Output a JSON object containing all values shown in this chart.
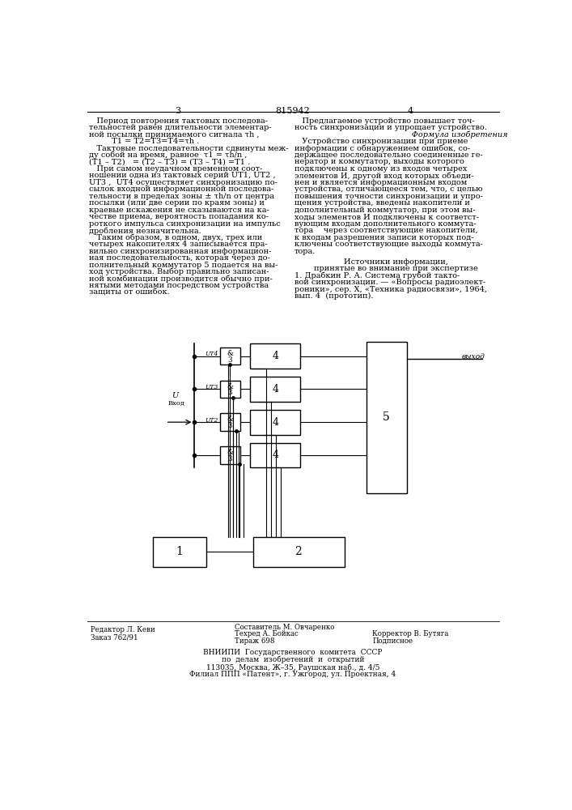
{
  "page_number_left": "3",
  "page_number_center": "815942",
  "page_number_right": "4",
  "left_text_lines": [
    "   Период повторения тактовых последова-",
    "тельностей равен длительности элементар-",
    "ной посылки принимаемого сигнала τh ,",
    "         T1 = T2=T3=T4=τh .",
    "   Тактовые последовательности сдвинуты меж-",
    "ду собой на время, равное  τ1 = τh/n ,",
    "(T1 – T2)   = (T2 – T3) = (T3 – T4) =T1 .",
    "   При самом неудачном временном соот-",
    "ношении одна из тактовых серий UT1, UT2 ,",
    "UT3 ,  UT4 осуществляет синхронизацию по-",
    "сылок входной информационной последова-",
    "тельности в пределах зоны ± τh/n от центра",
    "посылки (или две серии по краям зоны) и",
    "краевые искажения не сказываются на ка-",
    "честве приема, вероятность попадания ко-",
    "роткого импульса синхронизации на импульс",
    "дробления незначительна.",
    "   Таким образом, в одном, двух, трех или",
    "четырех накопителях 4 записывается пра-",
    "вильно синхронизированная информацион-",
    "ная последовательность, которая через до-",
    "полнительный коммутатор 5 подается на вы-",
    "ход устройства. Выбор правильно записан-",
    "ной комбинации производится обычно при-",
    "нятыми методами посредством устройства",
    "защиты от ошибок."
  ],
  "right_text_lines": [
    "   Предлагаемое устройство повышает точ-",
    "ность синхронизации и упрощает устройство.",
    "      Формула изобретения",
    "   Устройство синхронизации при приеме",
    "информации с обнаружением ошибок, со-",
    "держащее последовательно соединенные ге-",
    "нератор и коммутатор, выходы которого",
    "подключены к одному из входов четырех",
    "элементов И, другой вход которых объеди-",
    "нен и является информационным входом",
    "устройства, отличающееся тем, что, с целью",
    "повышения точности синхронизации и упро-",
    "щения устройства, введены накопители и",
    "дополнительный коммутатор, при этом вы-",
    "ходы элементов И подключены к соответст-",
    "вующим входам дополнительного коммута-",
    "тора    через соответствующие накопители,",
    "к входам разрешения записи которых под-",
    "ключены соответствующие выходы коммута-",
    "тора."
  ],
  "sources_title": "Источники информации,",
  "sources_subtitle": "принятые во внимание при экспертизе",
  "source_ref": "1. Драбкин Р. А. Система грубой такто-",
  "source_ref2": "вой синхронизации. — «Вопросы радиоэлект-",
  "source_ref3": "роники», сер. X, «Техника радиосвязи», 1964,",
  "source_ref4": "вып. 4  (прототип).",
  "ed1": "Редактор Л. Кеви",
  "ed2": "Заказ 762/91",
  "comp1": "Составитель М. Овчаренко",
  "comp2": "Техред А. Бойкас",
  "comp3": "Тираж 698",
  "corr1": "Корректор В. Бутяга",
  "corr2": "Подписное",
  "vn1": "ВНИИПИ  Государственного  комитета  СССР",
  "vn2": "по  делам  изобретений  и  открытий",
  "vn3": "113035, Москва, Ж–35, Раушская наб., д. 4/5",
  "vn4": "Филиал ППП «Патент», г. Ужгород, ул. Проектная, 4",
  "bg_color": "#ffffff",
  "lc": "#000000",
  "tc": "#000000"
}
